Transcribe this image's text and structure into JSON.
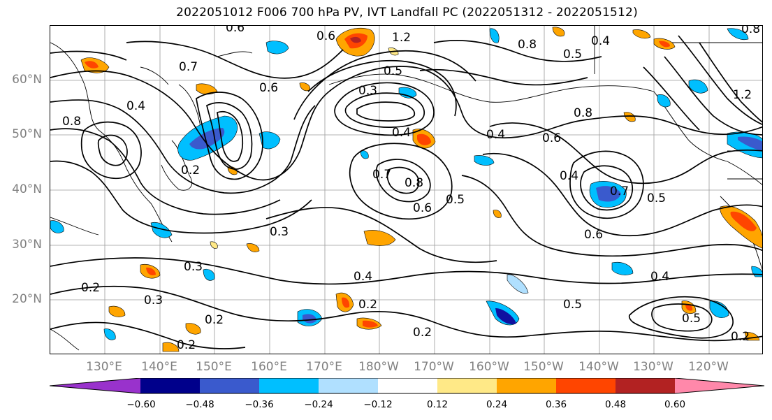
{
  "title": "2022051012 F006 700 hPa PV, IVT Landfall PC (2022051312 - 2022051512)",
  "latitude_labels": [
    "60°N",
    "50°N",
    "40°N",
    "30°N",
    "20°N"
  ],
  "longitude_labels": [
    "130°E",
    "140°E",
    "150°E",
    "160°E",
    "170°E",
    "180°W",
    "170°W",
    "160°W",
    "150°W",
    "140°W",
    "130°W",
    "120°W"
  ],
  "contour_labels": [
    "0.6",
    "0.6",
    "1.2",
    "0.8",
    "0.4",
    "0.5",
    "0.8",
    "1.2",
    "0.7",
    "0.3",
    "0.5",
    "0.4",
    "0.8",
    "0.4",
    "0.6",
    "0.8",
    "0.2",
    "0.6",
    "0.4",
    "0.7",
    "0.8",
    "0.5",
    "0.6",
    "0.3",
    "0.4",
    "0.6",
    "0.5",
    "0.7",
    "0.3",
    "0.2",
    "0.3",
    "0.4",
    "0.2",
    "0.2",
    "0.2",
    "0.4",
    "0.5",
    "0.5",
    "0.2",
    "0.2"
  ],
  "colorbar": {
    "ticks": [
      "−0.60",
      "−0.48",
      "−0.36",
      "−0.24",
      "−0.12",
      "0.12",
      "0.24",
      "0.36",
      "0.48",
      "0.60"
    ],
    "colors": [
      "#9932CC",
      "#00008B",
      "#3A5ACD",
      "#00BFFF",
      "#B0E0FF",
      "#FFFFFF",
      "#FFE987",
      "#FFA500",
      "#FF4500",
      "#B22222",
      "#FF88AA"
    ]
  },
  "shading_colors": {
    "neg_outer": "#00BFFF",
    "neg_mid": "#3A5ACD",
    "neg_inner": "#1010A0",
    "neg_light": "#B0E0FF",
    "pos_light": "#FFE987",
    "pos_outer": "#FFA500",
    "pos_mid": "#FF4500",
    "pos_inner": "#B22222"
  }
}
